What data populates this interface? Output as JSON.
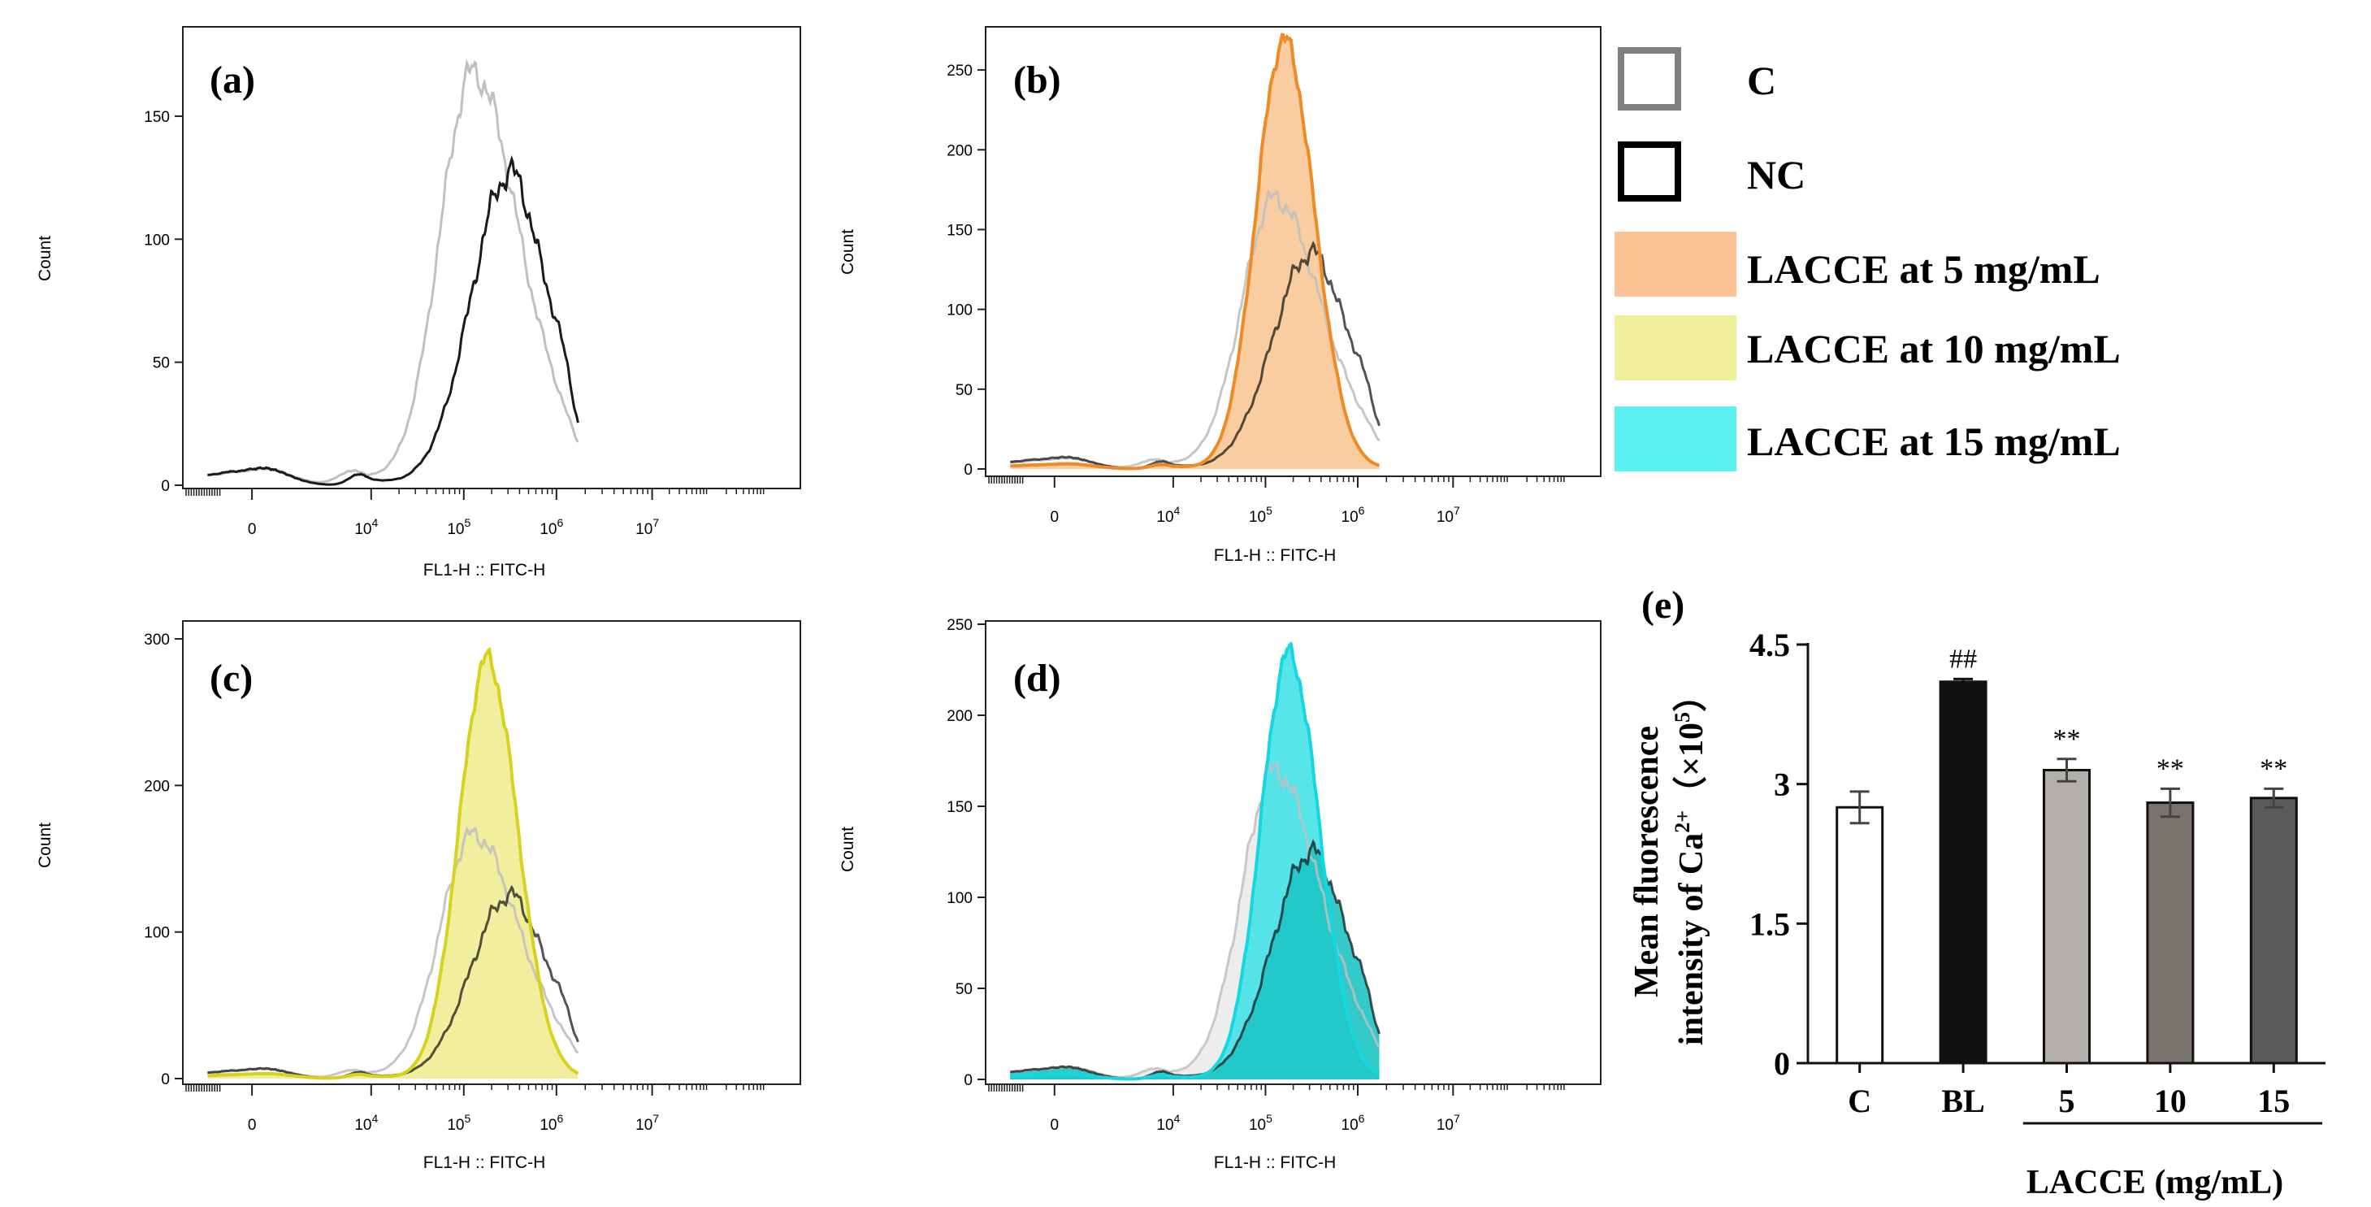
{
  "colors": {
    "c_line": "#c0c0c0",
    "nc_line": "#1a1a1a",
    "orange_fill": "#f8c48e",
    "orange_line": "#f08a24",
    "yellow_fill": "#eeec8c",
    "yellow_line": "#d6d21e",
    "cyan_fill": "#39e0e6",
    "cyan_line": "#14d8e0",
    "cyan_fill_dark": "#1ec4c4"
  },
  "legend": {
    "items": [
      {
        "label": "C",
        "style": "outline",
        "color": "#808080"
      },
      {
        "label": "NC",
        "style": "outline",
        "color": "#000000"
      },
      {
        "label": "LACCE at 5 mg/mL",
        "style": "fill",
        "color": "#fbc393"
      },
      {
        "label": "LACCE at 10 mg/mL",
        "style": "fill",
        "color": "#f0f09a"
      },
      {
        "label": "LACCE at 15 mg/mL",
        "style": "fill",
        "color": "#5cf2f2"
      }
    ]
  },
  "chart_data": [
    {
      "panel": "(a)",
      "type": "area",
      "xlabel": "FL1-H :: FITC-H",
      "ylabel": "Count",
      "x_scale": "biexponential",
      "xticks": [
        {
          "v": 0,
          "label": "0"
        },
        {
          "v": 4,
          "label": "10",
          "sup": "4"
        },
        {
          "v": 5,
          "label": "10",
          "sup": "5"
        },
        {
          "v": 6,
          "label": "10",
          "sup": "6"
        },
        {
          "v": 7,
          "label": "10",
          "sup": "7"
        }
      ],
      "ylim": [
        0,
        185
      ],
      "yticks": [
        0,
        50,
        100,
        150
      ],
      "series": [
        {
          "name": "C",
          "role": "c",
          "peak_x": 5.1,
          "peak_count": 170
        },
        {
          "name": "NC",
          "role": "nc",
          "peak_x": 5.5,
          "peak_count": 130
        }
      ]
    },
    {
      "panel": "(b)",
      "type": "area",
      "xlabel": "FL1-H :: FITC-H",
      "ylabel": "Count",
      "x_scale": "biexponential",
      "xticks": [
        {
          "v": 0,
          "label": "0"
        },
        {
          "v": 4,
          "label": "10",
          "sup": "4"
        },
        {
          "v": 5,
          "label": "10",
          "sup": "5"
        },
        {
          "v": 6,
          "label": "10",
          "sup": "6"
        },
        {
          "v": 7,
          "label": "10",
          "sup": "7"
        }
      ],
      "ylim": [
        0,
        275
      ],
      "yticks": [
        0,
        50,
        100,
        150,
        200,
        250
      ],
      "series": [
        {
          "name": "LACCE at 5 mg/mL",
          "role": "treat",
          "peak_x": 5.2,
          "peak_count": 270
        },
        {
          "name": "C",
          "role": "c",
          "peak_x": 5.0,
          "peak_count": 165
        },
        {
          "name": "NC",
          "role": "nc",
          "peak_x": 5.45,
          "peak_count": 128
        }
      ]
    },
    {
      "panel": "(c)",
      "type": "area",
      "xlabel": "FL1-H :: FITC-H",
      "ylabel": "Count",
      "x_scale": "biexponential",
      "xticks": [
        {
          "v": 0,
          "label": "0"
        },
        {
          "v": 4,
          "label": "10",
          "sup": "4"
        },
        {
          "v": 5,
          "label": "10",
          "sup": "5"
        },
        {
          "v": 6,
          "label": "10",
          "sup": "6"
        },
        {
          "v": 7,
          "label": "10",
          "sup": "7"
        }
      ],
      "ylim": [
        0,
        310
      ],
      "yticks": [
        0,
        100,
        200,
        300
      ],
      "series": [
        {
          "name": "LACCE at 10 mg/mL",
          "role": "treat",
          "peak_x": 5.25,
          "peak_count": 290
        },
        {
          "name": "C",
          "role": "c",
          "peak_x": 5.05,
          "peak_count": 168
        },
        {
          "name": "NC",
          "role": "nc",
          "peak_x": 5.5,
          "peak_count": 128
        }
      ]
    },
    {
      "panel": "(d)",
      "type": "area",
      "xlabel": "FL1-H :: FITC-H",
      "ylabel": "Count",
      "x_scale": "biexponential",
      "xticks": [
        {
          "v": 0,
          "label": "0"
        },
        {
          "v": 4,
          "label": "10",
          "sup": "4"
        },
        {
          "v": 5,
          "label": "10",
          "sup": "5"
        },
        {
          "v": 6,
          "label": "10",
          "sup": "6"
        },
        {
          "v": 7,
          "label": "10",
          "sup": "7"
        }
      ],
      "ylim": [
        0,
        250
      ],
      "yticks": [
        0,
        50,
        100,
        150,
        200,
        250
      ],
      "series": [
        {
          "name": "LACCE at 15 mg/mL",
          "role": "treat",
          "peak_x": 5.25,
          "peak_count": 237
        },
        {
          "name": "C",
          "role": "c",
          "peak_x": 5.0,
          "peak_count": 165
        },
        {
          "name": "NC",
          "role": "nc",
          "peak_x": 5.5,
          "peak_count": 128
        }
      ]
    },
    {
      "panel": "(e)",
      "type": "bar",
      "title": "",
      "ylabel_line1": "Mean fluorescence",
      "ylabel_line2_prefix": "intensity of Ca",
      "ylabel_line2_sup": "2+",
      "ylabel_line2_unit": "（×10",
      "ylabel_line2_unit_sup": "5",
      "ylabel_line2_close": "）",
      "xlabel": "LACCE (mg/mL)",
      "categories": [
        "C",
        "BL",
        "5",
        "10",
        "15"
      ],
      "values": [
        2.75,
        4.1,
        3.15,
        2.8,
        2.85
      ],
      "errors": [
        0.17,
        0.03,
        0.12,
        0.15,
        0.1
      ],
      "bar_colors": [
        "#ffffff",
        "#111111",
        "#b3afaa",
        "#79736e",
        "#5a5a5a"
      ],
      "annotations": [
        "",
        "##",
        "**",
        "**",
        "**"
      ],
      "ylim": [
        0,
        4.5
      ],
      "yticks": [
        {
          "v": 0,
          "label": "0"
        },
        {
          "v": 1.5,
          "label": "1.5"
        },
        {
          "v": 3,
          "label": "3"
        },
        {
          "v": 4.5,
          "label": "4.5"
        }
      ],
      "group_underline": [
        "5",
        "10",
        "15"
      ]
    }
  ]
}
